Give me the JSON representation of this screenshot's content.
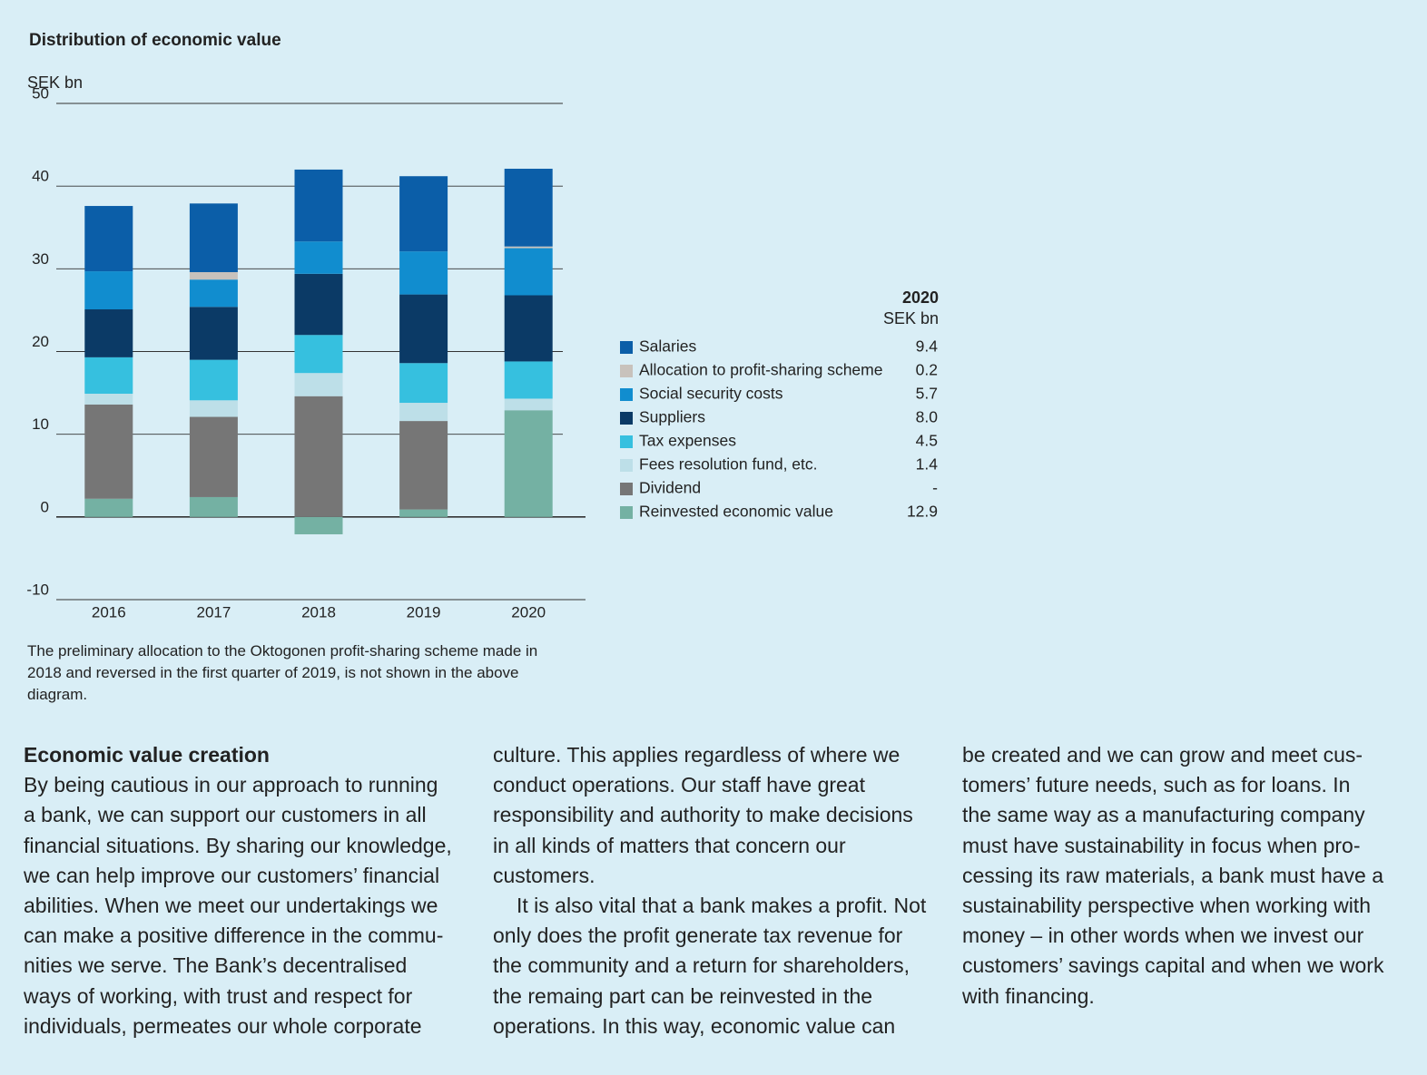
{
  "chart_data": {
    "type": "stacked_bar",
    "title": "Distribution of economic value",
    "y_label": "SEK bn",
    "categories": [
      "2016",
      "2017",
      "2018",
      "2019",
      "2020"
    ],
    "ylim": [
      -10,
      50
    ],
    "yticks": [
      -10,
      0,
      10,
      20,
      30,
      40,
      50
    ],
    "grid": true,
    "series": [
      {
        "name": "Reinvested economic value",
        "color": "#74b1a3",
        "values": [
          2.2,
          2.4,
          -2.1,
          0.9,
          12.9
        ]
      },
      {
        "name": "Dividend",
        "color": "#767676",
        "values": [
          11.4,
          9.7,
          14.6,
          10.7,
          0
        ]
      },
      {
        "name": "Fees resolution fund, etc.",
        "color": "#bddfe8",
        "values": [
          1.3,
          2.0,
          2.8,
          2.2,
          1.4
        ]
      },
      {
        "name": "Tax expenses",
        "color": "#36c0df",
        "values": [
          4.4,
          4.9,
          4.6,
          4.8,
          4.5
        ]
      },
      {
        "name": "Suppliers",
        "color": "#0b3a66",
        "values": [
          5.8,
          6.4,
          7.4,
          8.3,
          8.0
        ]
      },
      {
        "name": "Social security costs",
        "color": "#118dcf",
        "values": [
          4.6,
          3.3,
          3.9,
          5.2,
          5.7
        ]
      },
      {
        "name": "Allocation to profit-sharing scheme",
        "color": "#c8c2bc",
        "values": [
          0,
          0.9,
          0,
          0,
          0.2
        ]
      },
      {
        "name": "Salaries",
        "color": "#0b5ea8",
        "values": [
          7.9,
          8.3,
          8.7,
          9.1,
          9.4
        ]
      }
    ]
  },
  "legend_table": {
    "year": "2020",
    "unit": "SEK bn",
    "values": [
      "12.9",
      "-",
      "1.4",
      "4.5",
      "8.0",
      "5.7",
      "0.2",
      "9.4"
    ]
  },
  "footnote": [
    "The preliminary allocation to the Oktogonen profit-sharing scheme made in",
    "2018 and reversed in the first quarter of 2019, is not shown in the above",
    "diagram."
  ],
  "article": {
    "heading": "Economic value creation",
    "columns": [
      [
        "By being cautious in our approach to running",
        "a bank, we can support our customers in all",
        "financial situations. By sharing our knowledge,",
        "we can help improve our customers’ financial",
        "abilities. When we meet our undertakings we",
        "can make a positive difference in the commu-",
        "nities we serve. The Bank’s decentralised",
        "ways of working, with trust and respect for",
        "individuals, permeates our whole corporate"
      ],
      [
        "culture. This applies regardless of where we",
        "conduct operations. Our staff have great",
        "responsibility and authority to make decisions",
        "in all kinds of matters that concern our",
        "customers.",
        "It is also vital that a bank makes a profit. Not",
        "only does the profit generate tax revenue for",
        "the community and a return for shareholders,",
        "the remaing part can be reinvested in the",
        "operations. In this way, economic value can"
      ],
      [
        "be created and we can grow and meet cus-",
        "tomers’ future needs, such as for loans. In",
        "the same way as a manufacturing company",
        "must have sustainability in focus when pro-",
        "cessing its raw materials, a bank must have a",
        "sustainability perspective when working with",
        "money – in other words when we invest our",
        "customers’ savings capital and when we work",
        "with financing."
      ]
    ]
  }
}
